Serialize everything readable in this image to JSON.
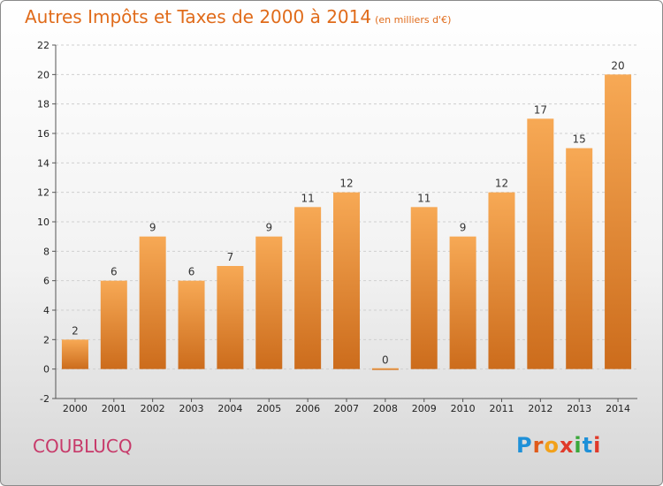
{
  "header": {
    "title": "Autres Impôts et Taxes de 2000 à 2014",
    "unit": "(en milliers d'€)"
  },
  "footer": {
    "commune": "COUBLUCQ",
    "logo_letters": [
      "P",
      "r",
      "o",
      "x",
      "i",
      "t",
      "i"
    ],
    "logo_colors": [
      "#1e90d8",
      "#e05a1a",
      "#f2a11a",
      "#e03a2a",
      "#3aa83a",
      "#1e90d8",
      "#e03a2a"
    ]
  },
  "colors": {
    "title": "#e06b1a",
    "commune": "#c73a6a",
    "bar_top": "#f7a955",
    "bar_bottom": "#cc6c1c",
    "grid": "#cfcfcf"
  },
  "chart_data": {
    "type": "bar",
    "categories": [
      "2000",
      "2001",
      "2002",
      "2003",
      "2004",
      "2005",
      "2006",
      "2007",
      "2008",
      "2009",
      "2010",
      "2011",
      "2012",
      "2013",
      "2014"
    ],
    "values": [
      2,
      6,
      9,
      6,
      7,
      9,
      11,
      12,
      0,
      11,
      9,
      12,
      17,
      15,
      20
    ],
    "ylim": [
      -2,
      22
    ],
    "yticks": [
      -2,
      0,
      2,
      4,
      6,
      8,
      10,
      12,
      14,
      16,
      18,
      20,
      22
    ],
    "grid": true,
    "data_labels": true
  }
}
